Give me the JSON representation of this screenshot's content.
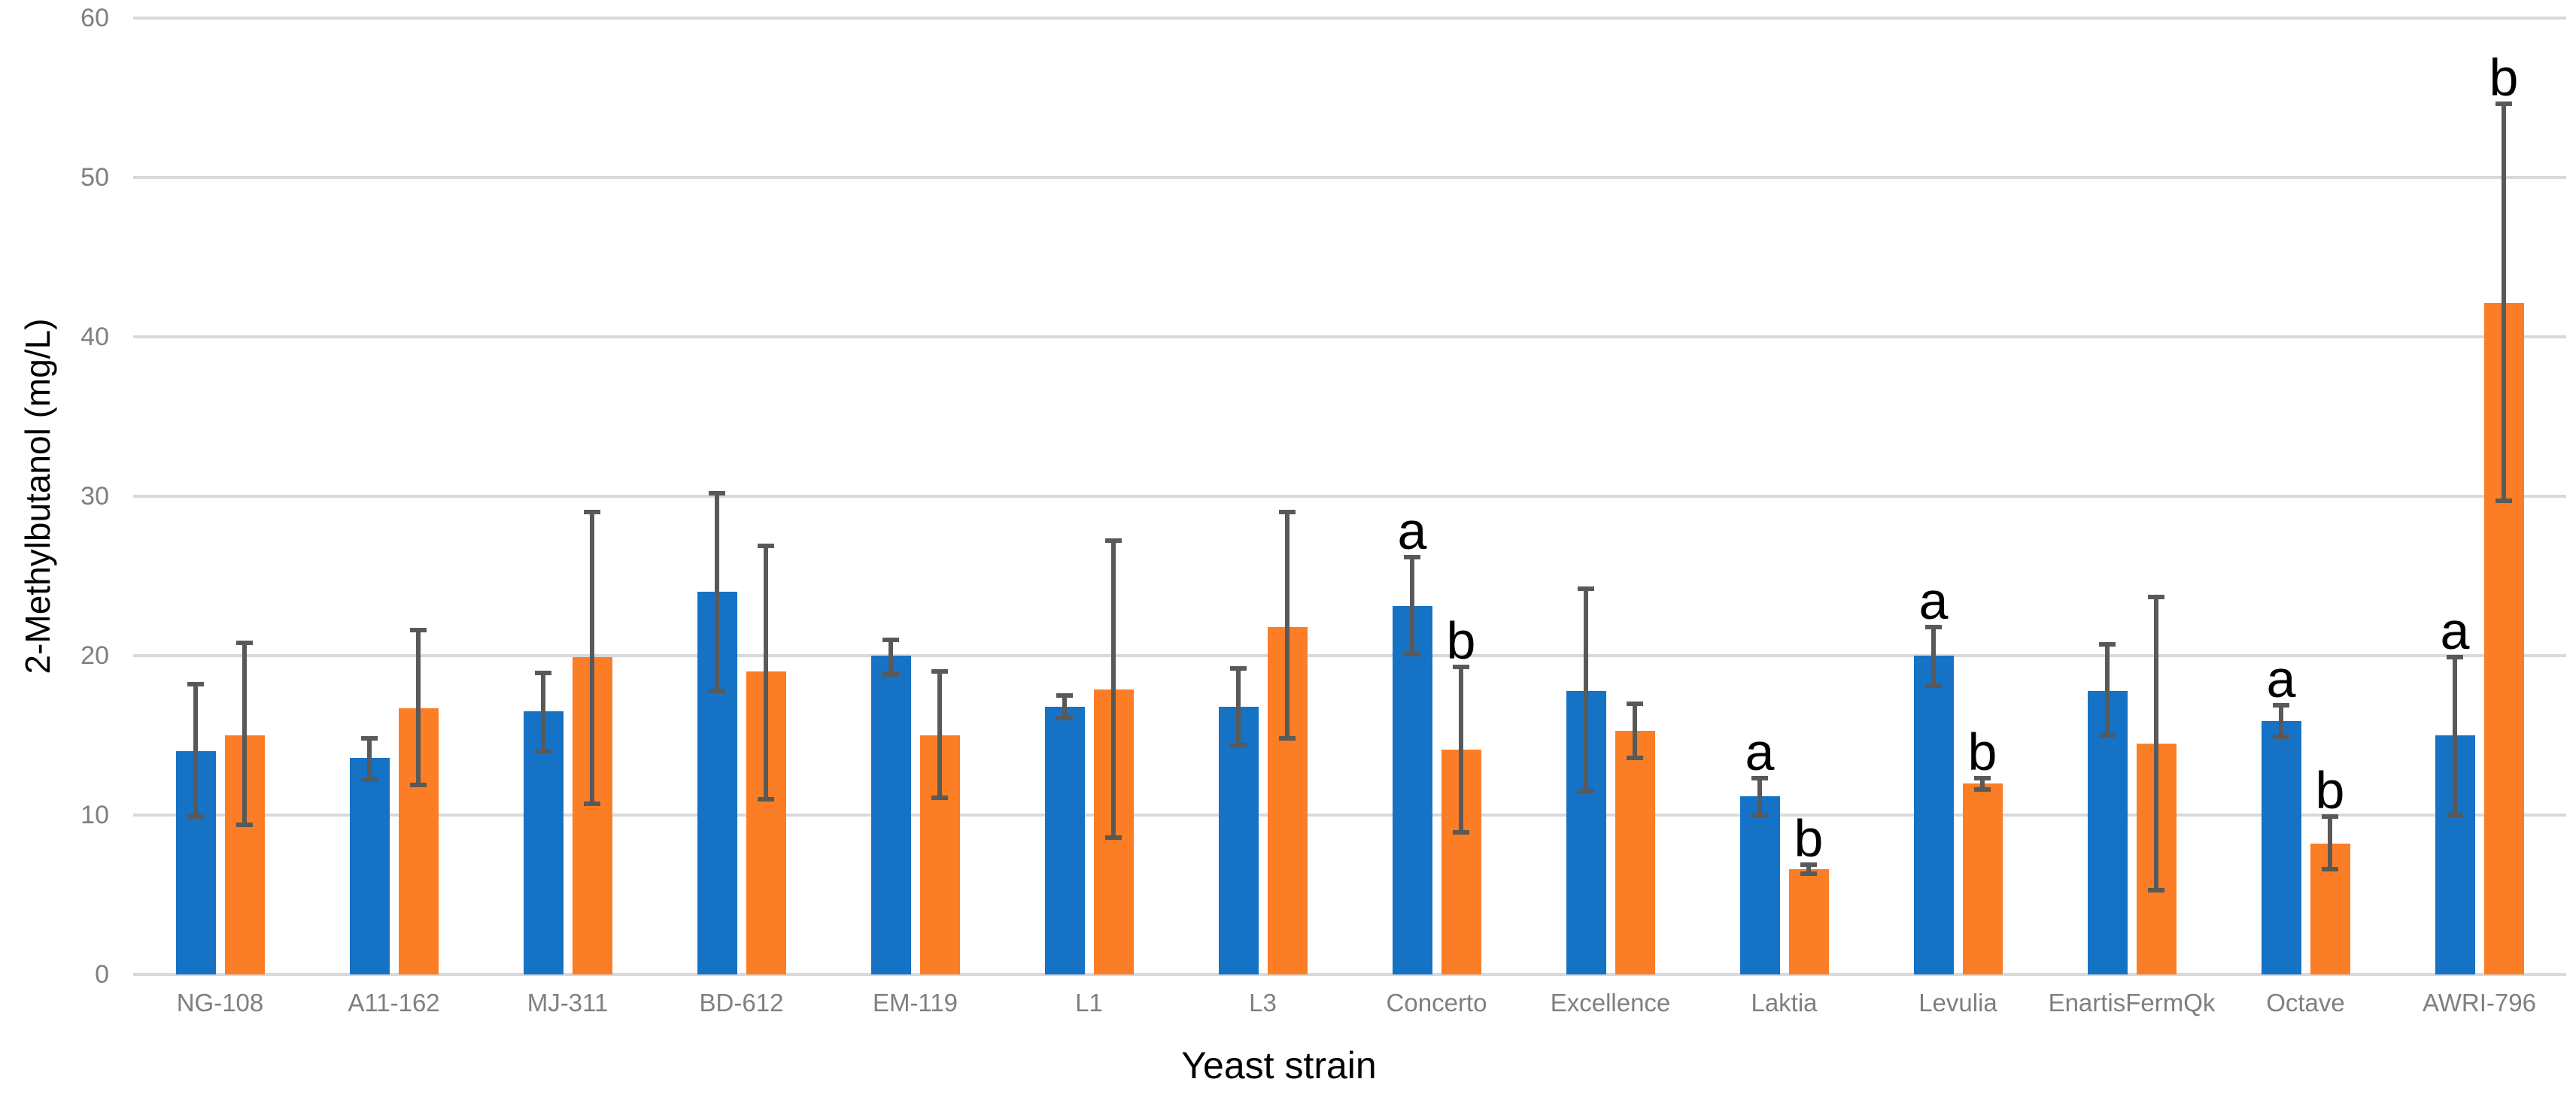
{
  "chart_data": {
    "type": "bar",
    "title": "",
    "xlabel": "Yeast strain",
    "ylabel": "2-Methylbutanol (mg/L)",
    "ylim": [
      0,
      60
    ],
    "yticks": [
      0,
      10,
      20,
      30,
      40,
      50,
      60
    ],
    "grid": true,
    "legend_position": "none",
    "categories": [
      "NG-108",
      "A11-162",
      "MJ-311",
      "BD-612",
      "EM-119",
      "L1",
      "L3",
      "Concerto",
      "Excellence",
      "Laktia",
      "Levulia",
      "EnartisFermQk",
      "Octave",
      "AWRI-796"
    ],
    "series": [
      {
        "name": "series-1-blue",
        "color": "#1572C5",
        "values": [
          14.0,
          13.6,
          16.5,
          24.0,
          20.0,
          16.8,
          16.8,
          23.1,
          17.8,
          11.2,
          20.0,
          17.8,
          15.9,
          15.0
        ],
        "err_low": [
          9.9,
          12.2,
          14.0,
          17.8,
          18.8,
          16.1,
          14.4,
          20.1,
          11.5,
          10.0,
          18.1,
          15.0,
          14.9,
          10.0
        ],
        "err_high": [
          18.2,
          14.8,
          18.9,
          30.2,
          21.0,
          17.5,
          19.2,
          26.2,
          24.2,
          12.3,
          21.8,
          20.7,
          16.9,
          19.9
        ],
        "sig_labels": [
          "",
          "",
          "",
          "",
          "",
          "",
          "",
          "a",
          "",
          "a",
          "a",
          "",
          "a",
          "a"
        ]
      },
      {
        "name": "series-2-orange",
        "color": "#FB7D26",
        "values": [
          15.0,
          16.7,
          19.9,
          19.0,
          15.0,
          17.9,
          21.8,
          14.1,
          15.3,
          6.6,
          12.0,
          14.5,
          8.2,
          42.1
        ],
        "err_low": [
          9.4,
          11.9,
          10.7,
          11.0,
          11.1,
          8.6,
          14.8,
          8.9,
          13.6,
          6.3,
          11.6,
          5.3,
          6.6,
          29.7
        ],
        "err_high": [
          20.8,
          21.6,
          29.0,
          26.9,
          19.0,
          27.2,
          29.0,
          19.3,
          17.0,
          6.9,
          12.3,
          23.7,
          9.9,
          54.6
        ],
        "sig_labels": [
          "",
          "",
          "",
          "",
          "",
          "",
          "",
          "b",
          "",
          "b",
          "b",
          "",
          "b",
          "b"
        ]
      }
    ],
    "error_bar_color": "#595959",
    "gridline_color": "#D9D9D9",
    "tick_label_color": "#7F7F7F",
    "axis_title_color": "#000000"
  }
}
